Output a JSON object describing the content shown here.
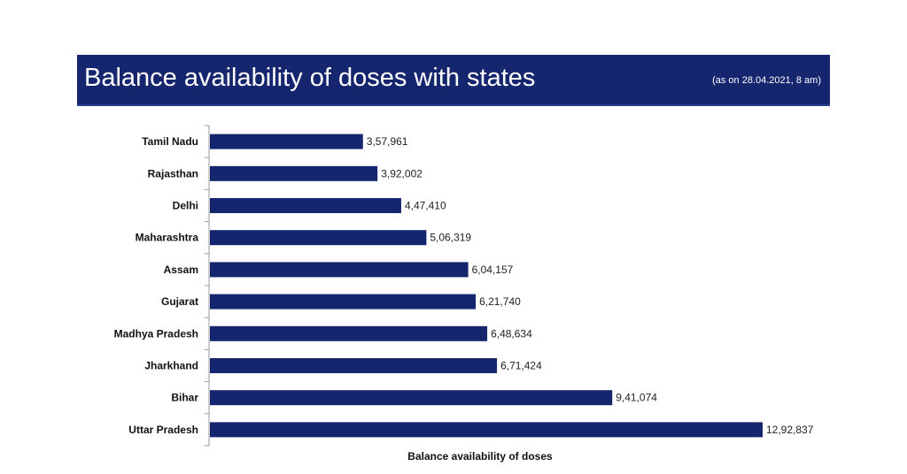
{
  "header": {
    "title": "Balance availability of doses with states",
    "subtitle": "(as on 28.04.2021, 8 am)"
  },
  "colors": {
    "banner": "#15266e",
    "bar": "#15266e",
    "axis": "#999999"
  },
  "chart_data": {
    "type": "bar",
    "orientation": "horizontal",
    "title": "Balance availability of doses with states",
    "subtitle": "(as on 28.04.2021, 8 am)",
    "xlabel": "Balance availability of doses",
    "ylabel": "",
    "categories": [
      "Tamil Nadu",
      "Rajasthan",
      "Delhi",
      "Maharashtra",
      "Assam",
      "Gujarat",
      "Madhya Pradesh",
      "Jharkhand",
      "Bihar",
      "Uttar Pradesh"
    ],
    "values": [
      357961,
      392002,
      447410,
      506319,
      604157,
      621740,
      648634,
      671424,
      941074,
      1292837
    ],
    "value_labels": [
      "3,57,961",
      "3,92,002",
      "4,47,410",
      "5,06,319",
      "6,04,157",
      "6,21,740",
      "6,48,634",
      "6,71,424",
      "9,41,074",
      "12,92,837"
    ],
    "xlim": [
      0,
      1292837
    ],
    "grid": false,
    "legend": "none"
  }
}
